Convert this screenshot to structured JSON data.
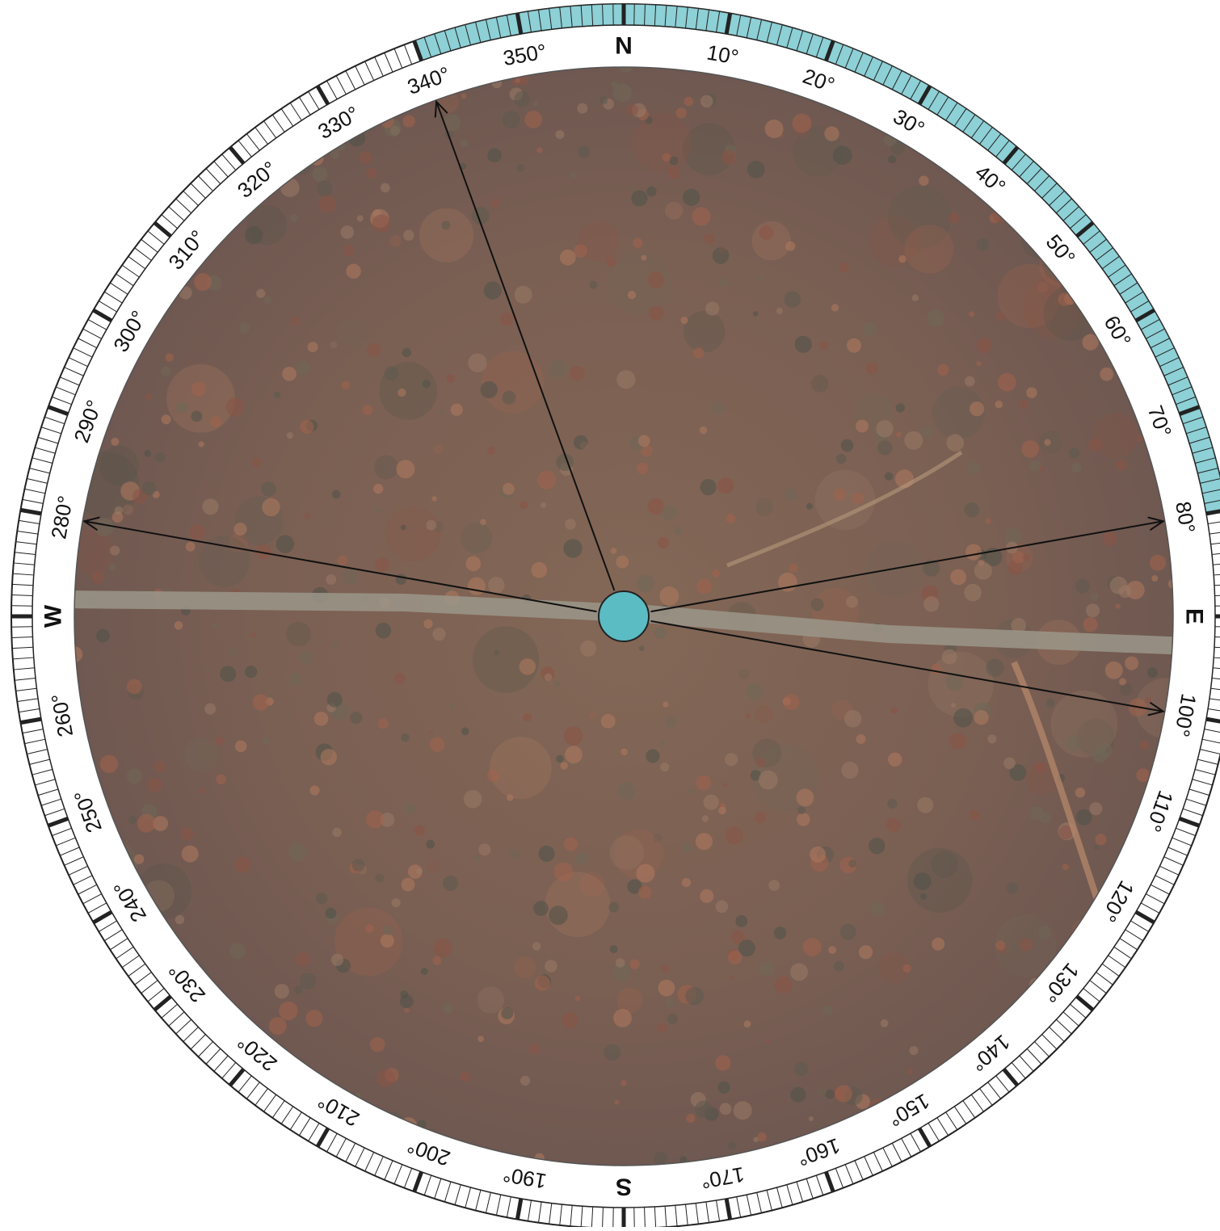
{
  "compass": {
    "cardinals": [
      {
        "label": "N",
        "bearing": 0
      },
      {
        "label": "E",
        "bearing": 90
      },
      {
        "label": "S",
        "bearing": 180
      },
      {
        "label": "W",
        "bearing": 270
      }
    ],
    "degree_labels": [
      {
        "text": "10°",
        "bearing": 10
      },
      {
        "text": "20°",
        "bearing": 20
      },
      {
        "text": "30°",
        "bearing": 30
      },
      {
        "text": "40°",
        "bearing": 40
      },
      {
        "text": "50°",
        "bearing": 50
      },
      {
        "text": "60°",
        "bearing": 60
      },
      {
        "text": "70°",
        "bearing": 70
      },
      {
        "text": "80°",
        "bearing": 80
      },
      {
        "text": "100°",
        "bearing": 100
      },
      {
        "text": "110°",
        "bearing": 110
      },
      {
        "text": "120°",
        "bearing": 120
      },
      {
        "text": "130°",
        "bearing": 130
      },
      {
        "text": "140°",
        "bearing": 140
      },
      {
        "text": "150°",
        "bearing": 150
      },
      {
        "text": "160°",
        "bearing": 160
      },
      {
        "text": "170°",
        "bearing": 170
      },
      {
        "text": "190°",
        "bearing": 190
      },
      {
        "text": "200°",
        "bearing": 200
      },
      {
        "text": "210°",
        "bearing": 210
      },
      {
        "text": "220°",
        "bearing": 220
      },
      {
        "text": "230°",
        "bearing": 230
      },
      {
        "text": "240°",
        "bearing": 240
      },
      {
        "text": "250°",
        "bearing": 250
      },
      {
        "text": "260°",
        "bearing": 260
      },
      {
        "text": "280°",
        "bearing": 280
      },
      {
        "text": "290°",
        "bearing": 290
      },
      {
        "text": "300°",
        "bearing": 300
      },
      {
        "text": "310°",
        "bearing": 310
      },
      {
        "text": "320°",
        "bearing": 320
      },
      {
        "text": "330°",
        "bearing": 330
      },
      {
        "text": "340°",
        "bearing": 340
      },
      {
        "text": "350°",
        "bearing": 350
      }
    ],
    "highlight_arc": {
      "from_bearing": 340,
      "to_bearing": 80,
      "color": "#8dd0d6"
    },
    "center_marker_color": "#5bbcc4",
    "arrows": [
      {
        "name": "arrow-340",
        "bearing": 340
      },
      {
        "name": "arrow-80",
        "bearing": 80
      },
      {
        "name": "arrow-100",
        "bearing": 100
      },
      {
        "name": "arrow-280",
        "bearing": 280
      }
    ],
    "background": {
      "type": "aerial-image",
      "dominant_colors": [
        "#8a5a4c",
        "#6e6a5c",
        "#a86a52"
      ]
    }
  }
}
